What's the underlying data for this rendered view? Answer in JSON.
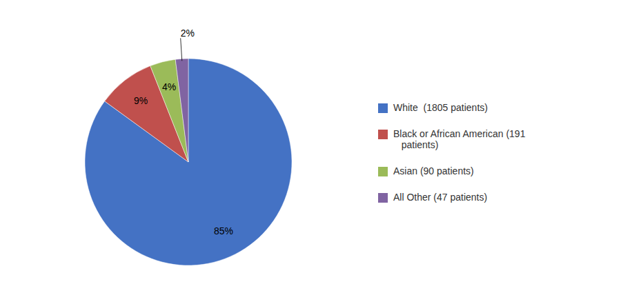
{
  "chart_data": {
    "type": "pie",
    "categories": [
      "White  (1805 patients)",
      "Black or African American (191\n   patients)",
      "Asian (90 patients)",
      "All Other (47 patients)"
    ],
    "values": [
      85,
      9,
      4,
      2
    ],
    "value_labels": [
      "85%",
      "9%",
      "4%",
      "2%"
    ],
    "colors": [
      "#4472C4",
      "#C0504D",
      "#9BBB59",
      "#8064A2"
    ],
    "data_labels": true,
    "legend": "right"
  }
}
